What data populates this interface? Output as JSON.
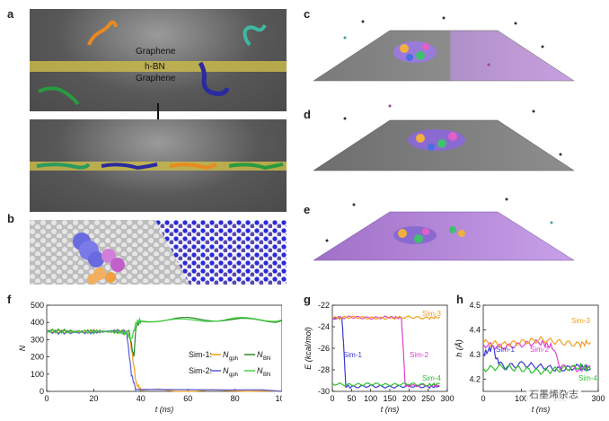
{
  "panel_labels": {
    "a": "a",
    "b": "b",
    "c": "c",
    "d": "d",
    "e": "e",
    "f": "f",
    "g": "g",
    "h": "h"
  },
  "panel_a": {
    "graphene_top": "Graphene",
    "hbn": "h-BN",
    "graphene_bottom": "Graphene"
  },
  "chart_f": {
    "ylabel": "N",
    "xlabel": "t (ns)",
    "ylim": [
      0,
      500
    ],
    "xlim": [
      0,
      100
    ],
    "yticks": [
      "0",
      "100",
      "200",
      "300",
      "400",
      "500"
    ],
    "xticks": [
      "0",
      "20",
      "40",
      "60",
      "80",
      "100"
    ],
    "legend": {
      "sim1": "Sim-1:",
      "sim2": "Sim-2:",
      "ngph": "N",
      "ngph_sub": "gph",
      "nbn": "N",
      "nbn_sub": "BN"
    },
    "colors": {
      "sim1_gph": "#f0a020",
      "sim1_bn": "#2a8a2a",
      "sim2_gph": "#5a5ad8",
      "sim2_bn": "#45d045"
    }
  },
  "chart_g": {
    "ylabel": "E (kcal/mol)",
    "xlabel": "t (ns)",
    "ylim": [
      -30,
      -22
    ],
    "xlim": [
      0,
      300
    ],
    "yticks": [
      "-22",
      "-24",
      "-26",
      "-28",
      "-30"
    ],
    "xticks": [
      "0",
      "50",
      "100",
      "150",
      "200",
      "250",
      "300"
    ],
    "labels": {
      "sim1": "Sim-1",
      "sim2": "Sim-2",
      "sim3": "Sim-3",
      "sim4": "Sim-4"
    },
    "colors": {
      "sim1": "#3a3ad0",
      "sim2": "#e040d0",
      "sim3": "#f0a020",
      "sim4": "#30c030"
    }
  },
  "chart_h": {
    "ylabel": "h (Å)",
    "xlabel": "t (ns)",
    "ylim": [
      4.15,
      4.5
    ],
    "xlim": [
      0,
      300
    ],
    "yticks": [
      "4.5",
      "4.4",
      "4.3",
      "4.2"
    ],
    "xticks": [
      "0",
      "100",
      "200",
      "300"
    ],
    "labels": {
      "sim1": "Sim-1",
      "sim2": "Sim-2",
      "sim3": "Sim-3",
      "sim4": "Sim-4"
    },
    "colors": {
      "sim1": "#3a3ad0",
      "sim2": "#e040d0",
      "sim3": "#f0a020",
      "sim4": "#30c030"
    }
  },
  "chart_data": [
    {
      "type": "line",
      "title": "",
      "xlabel": "t (ns)",
      "ylabel": "N",
      "xlim": [
        0,
        100
      ],
      "ylim": [
        0,
        500
      ],
      "series": [
        {
          "name": "Sim-1: Ngph",
          "x": [
            0,
            10,
            20,
            30,
            35,
            37,
            38,
            40,
            100
          ],
          "y": [
            350,
            345,
            350,
            345,
            340,
            150,
            50,
            5,
            0
          ]
        },
        {
          "name": "Sim-1: NBN",
          "x": [
            0,
            10,
            20,
            30,
            35,
            37,
            38,
            40,
            60,
            80,
            100
          ],
          "y": [
            355,
            350,
            345,
            350,
            345,
            200,
            380,
            410,
            420,
            415,
            410
          ]
        },
        {
          "name": "Sim-2: Ngph",
          "x": [
            0,
            10,
            20,
            30,
            34,
            36,
            38,
            100
          ],
          "y": [
            345,
            340,
            345,
            350,
            340,
            100,
            5,
            0
          ]
        },
        {
          "name": "Sim-2: NBN",
          "x": [
            0,
            10,
            20,
            30,
            34,
            36,
            38,
            40,
            60,
            80,
            100
          ],
          "y": [
            350,
            345,
            350,
            345,
            340,
            300,
            400,
            415,
            410,
            420,
            415
          ]
        }
      ]
    },
    {
      "type": "line",
      "title": "",
      "xlabel": "t (ns)",
      "ylabel": "E (kcal/mol)",
      "xlim": [
        0,
        300
      ],
      "ylim": [
        -30,
        -22
      ],
      "series": [
        {
          "name": "Sim-1",
          "x": [
            0,
            25,
            30,
            35,
            50,
            100,
            150,
            200,
            250,
            280
          ],
          "y": [
            -23.2,
            -23.2,
            -26,
            -29.5,
            -29.6,
            -29.5,
            -29.6,
            -29.5,
            -29.6,
            -29.5
          ]
        },
        {
          "name": "Sim-2",
          "x": [
            0,
            50,
            100,
            150,
            180,
            185,
            190,
            200,
            250,
            280
          ],
          "y": [
            -23.2,
            -23.1,
            -23.2,
            -23.1,
            -23.2,
            -26,
            -29.4,
            -29.5,
            -29.4,
            -29.5
          ]
        },
        {
          "name": "Sim-3",
          "x": [
            0,
            50,
            100,
            150,
            200,
            250,
            280
          ],
          "y": [
            -23.2,
            -23.1,
            -23.2,
            -23.2,
            -23.1,
            -23.2,
            -23.1
          ]
        },
        {
          "name": "Sim-4",
          "x": [
            0,
            50,
            100,
            150,
            200,
            250,
            280
          ],
          "y": [
            -29.3,
            -29.4,
            -29.3,
            -29.4,
            -29.3,
            -29.4,
            -29.3
          ]
        }
      ]
    },
    {
      "type": "line",
      "title": "",
      "xlabel": "t (ns)",
      "ylabel": "h (Å)",
      "xlim": [
        0,
        300
      ],
      "ylim": [
        4.15,
        4.5
      ],
      "series": [
        {
          "name": "Sim-1",
          "x": [
            0,
            25,
            40,
            60,
            100,
            150,
            200,
            250,
            280
          ],
          "y": [
            4.3,
            4.33,
            4.26,
            4.25,
            4.26,
            4.25,
            4.24,
            4.25,
            4.24
          ]
        },
        {
          "name": "Sim-2",
          "x": [
            0,
            50,
            100,
            150,
            180,
            200,
            250,
            280
          ],
          "y": [
            4.34,
            4.33,
            4.34,
            4.35,
            4.33,
            4.25,
            4.24,
            4.25
          ]
        },
        {
          "name": "Sim-3",
          "x": [
            0,
            50,
            100,
            150,
            200,
            250,
            280
          ],
          "y": [
            4.35,
            4.34,
            4.35,
            4.36,
            4.35,
            4.34,
            4.35
          ]
        },
        {
          "name": "Sim-4",
          "x": [
            0,
            50,
            100,
            150,
            200,
            250,
            280
          ],
          "y": [
            4.24,
            4.25,
            4.24,
            4.23,
            4.24,
            4.25,
            4.24
          ]
        }
      ]
    }
  ],
  "watermark": {
    "text": "石墨烯杂志"
  }
}
